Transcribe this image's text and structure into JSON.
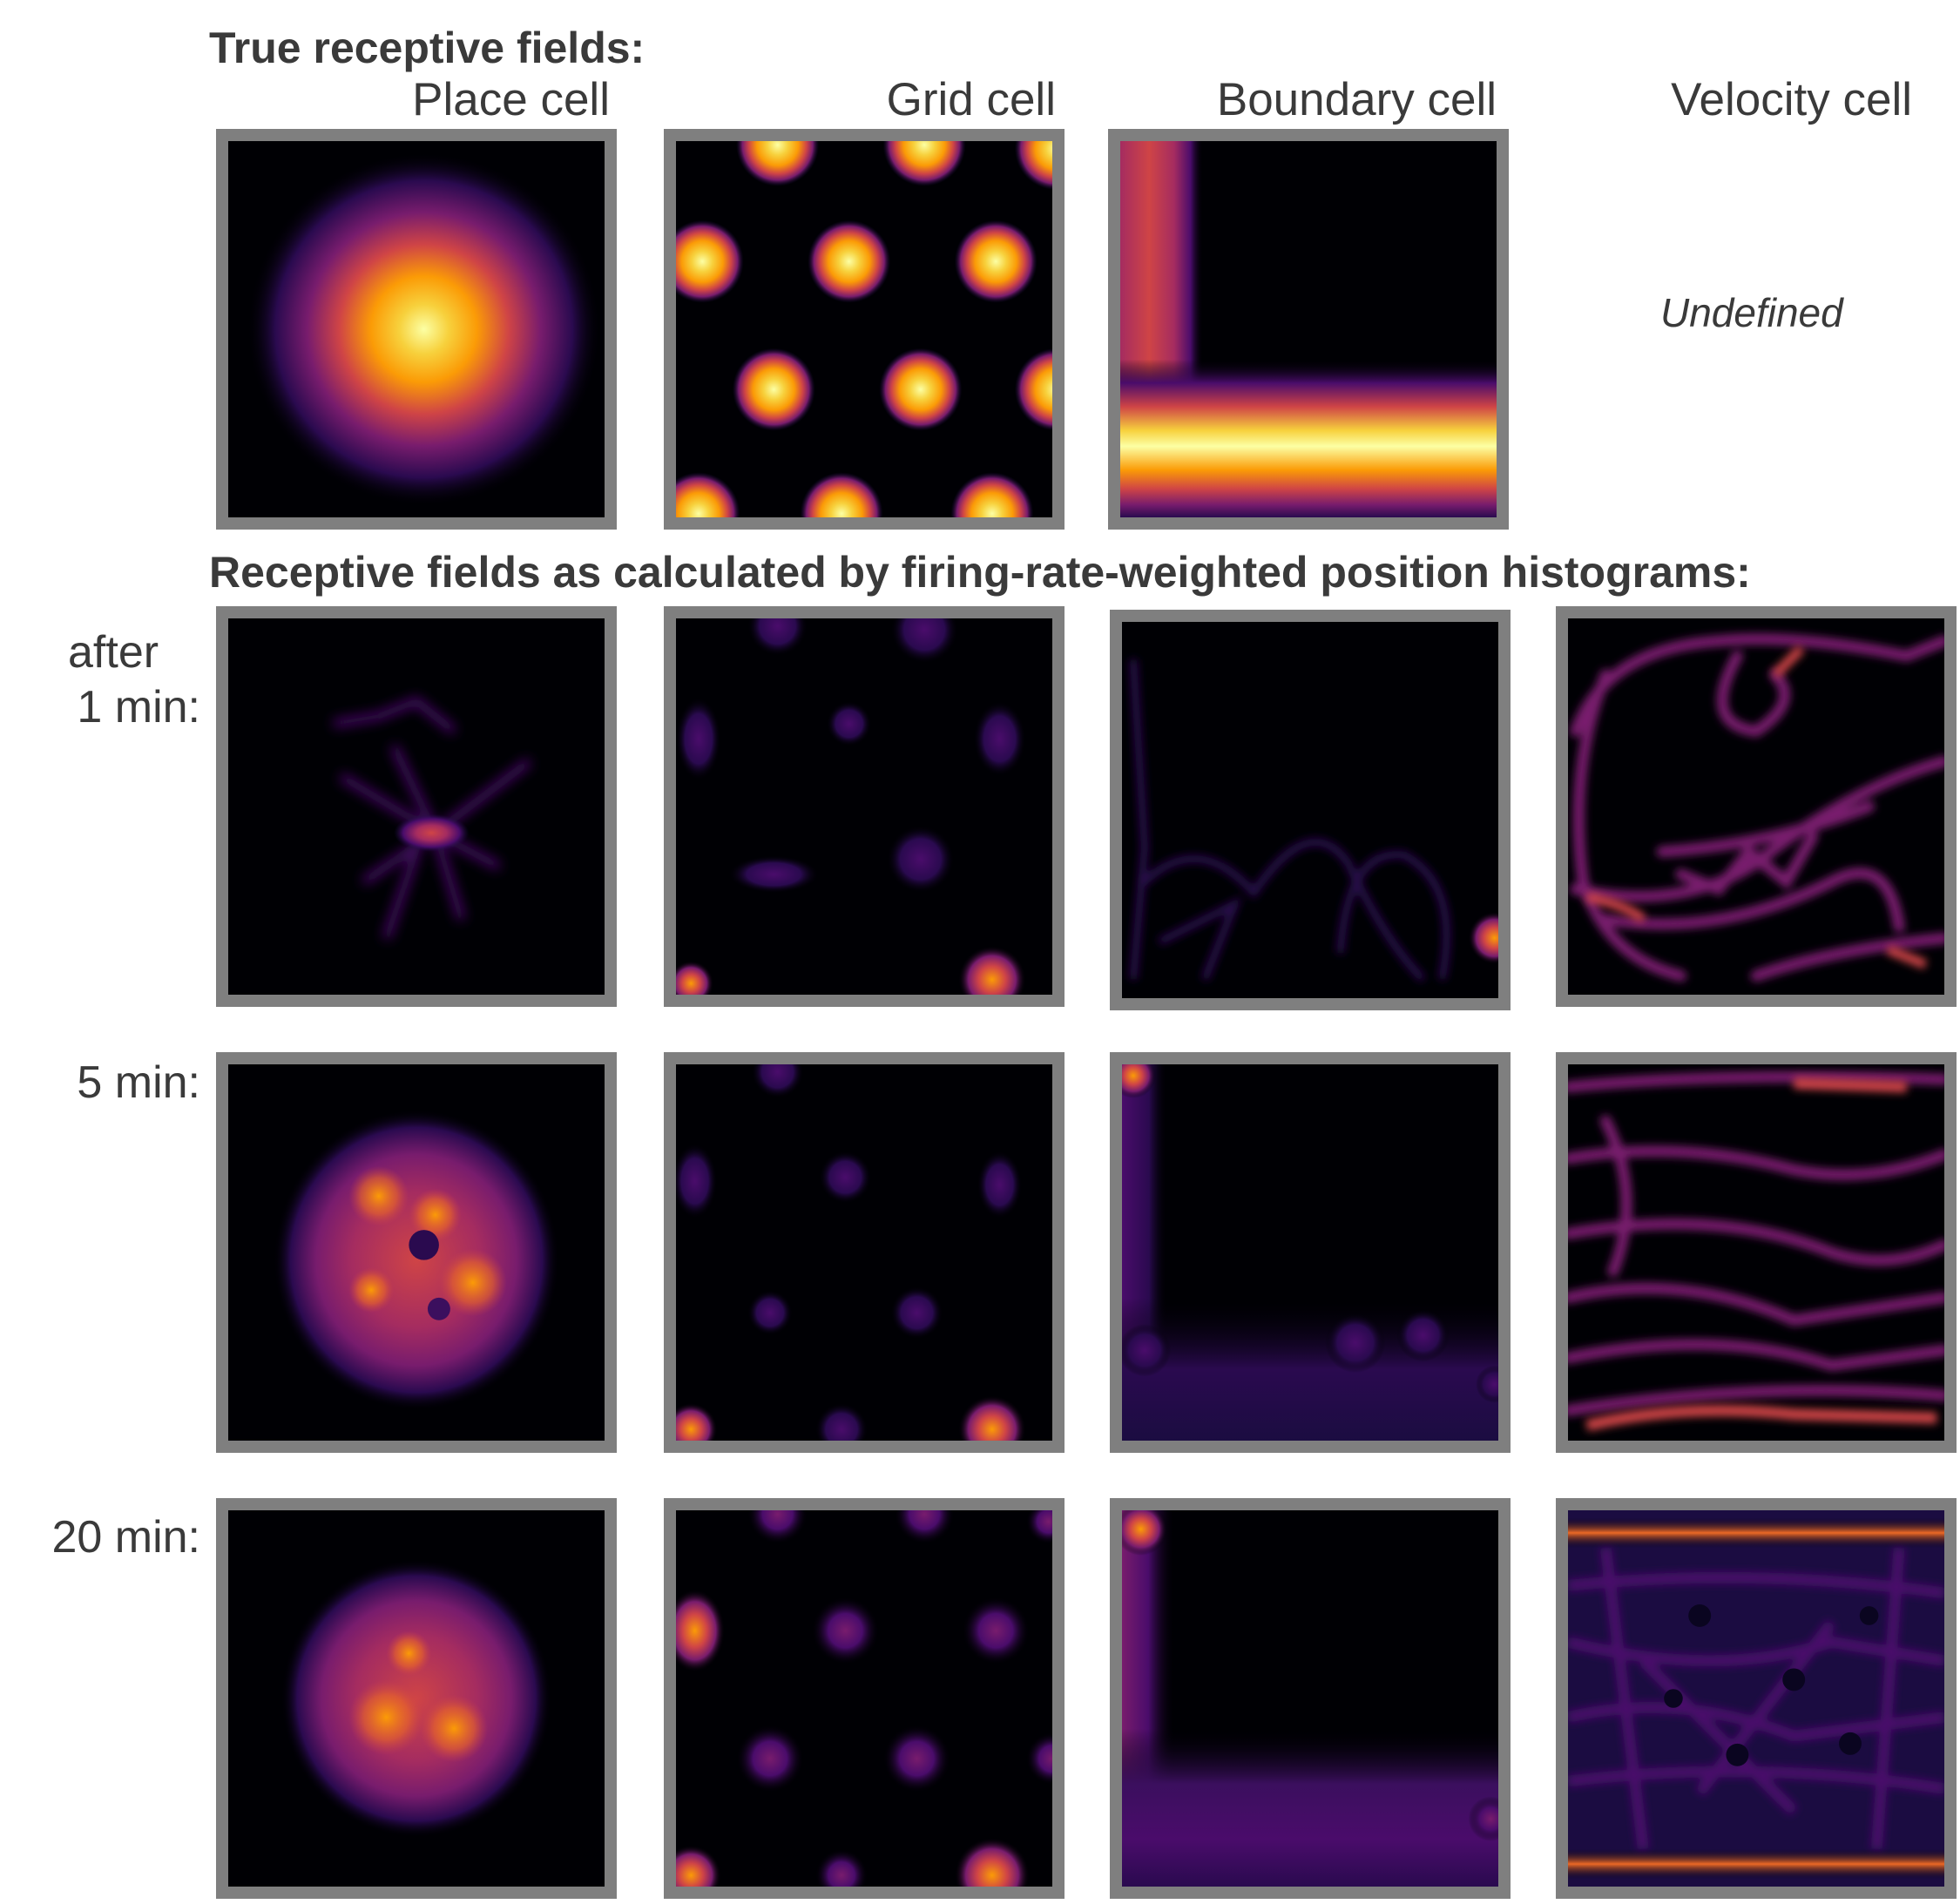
{
  "headings": {
    "true_fields": "True receptive fields:",
    "calculated_fields": "Receptive fields as calculated by firing-rate-weighted position histograms:"
  },
  "columns": [
    {
      "title": "Place cell"
    },
    {
      "title": "Grid cell"
    },
    {
      "title": "Boundary cell"
    },
    {
      "title": "Velocity cell"
    }
  ],
  "undefined_label": "Undefined",
  "rows": [
    {
      "label_line1": "after",
      "label_line2": "1 min:"
    },
    {
      "label_line1": "",
      "label_line2": "5 min:"
    },
    {
      "label_line1": "",
      "label_line2": "20 min:"
    }
  ],
  "colormap": {
    "name": "inferno",
    "stops": [
      "#000004",
      "#1b0c41",
      "#4a0c6b",
      "#781c6d",
      "#a52c60",
      "#cf4446",
      "#ed6925",
      "#fb9b06",
      "#f7d13d",
      "#fcffa4"
    ]
  },
  "border_color": "#7f7f7f",
  "text_color": "#3a3a3a"
}
